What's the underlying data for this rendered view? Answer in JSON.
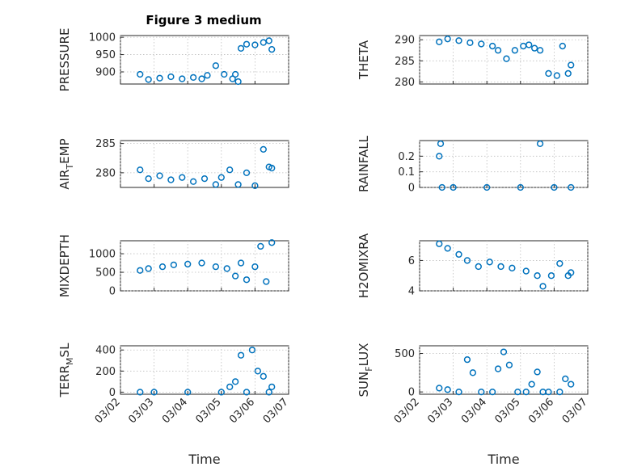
{
  "figure": {
    "title": "Figure 3 medium",
    "marker_color": "#0072bd",
    "axis_color": "#262626",
    "grid": true
  },
  "chart_data": [
    {
      "type": "scatter",
      "title": "Figure 3 medium",
      "ylabel": "PRESSURE",
      "ylabel_base": "PRESSURE",
      "ylabel_sub": "",
      "ylim": [
        865,
        1005
      ],
      "yticks": [
        900,
        950,
        1000
      ],
      "xticks": [],
      "xlabel": "",
      "x": [
        "03/02 14:00",
        "03/02 20:00",
        "03/03 04:00",
        "03/03 12:00",
        "03/03 20:00",
        "03/04 04:00",
        "03/04 10:00",
        "03/04 14:00",
        "03/04 20:00",
        "03/05 02:00",
        "03/05 08:00",
        "03/05 10:00",
        "03/05 12:00",
        "03/05 14:00",
        "03/05 18:00",
        "03/06 00:00",
        "03/06 06:00",
        "03/06 10:00",
        "03/06 12:00"
      ],
      "y": [
        893,
        878,
        882,
        886,
        880,
        884,
        880,
        890,
        918,
        893,
        880,
        893,
        872,
        968,
        980,
        978,
        985,
        990,
        965
      ],
      "series": [
        {
          "name": "",
          "x": [],
          "y": []
        }
      ]
    },
    {
      "type": "scatter",
      "title": "",
      "ylabel": "THETA",
      "ylabel_base": "THETA",
      "ylabel_sub": "",
      "ylim": [
        279.5,
        291
      ],
      "yticks": [
        280,
        285,
        290
      ],
      "xticks": [],
      "xlabel": "",
      "x": [
        "03/02 14:00",
        "03/02 20:00",
        "03/03 04:00",
        "03/03 12:00",
        "03/03 20:00",
        "03/04 04:00",
        "03/04 08:00",
        "03/04 14:00",
        "03/04 20:00",
        "03/05 02:00",
        "03/05 06:00",
        "03/05 10:00",
        "03/05 14:00",
        "03/05 20:00",
        "03/06 02:00",
        "03/06 06:00",
        "03/06 10:00",
        "03/06 12:00"
      ],
      "y": [
        289.5,
        290.2,
        289.8,
        289.3,
        289.0,
        288.5,
        287.5,
        285.5,
        287.5,
        288.5,
        288.8,
        288.0,
        287.5,
        282.0,
        281.5,
        288.5,
        282.0,
        284.0
      ],
      "series": [
        {
          "name": "",
          "x": [],
          "y": []
        }
      ]
    },
    {
      "type": "scatter",
      "title": "",
      "ylabel": "AIR_TEMP",
      "ylabel_base": "AIR",
      "ylabel_sub": "T",
      "ylabel_rest": "EMP",
      "ylim": [
        277.5,
        285.5
      ],
      "yticks": [
        280,
        285
      ],
      "xticks": [],
      "xlabel": "",
      "x": [
        "03/02 14:00",
        "03/02 20:00",
        "03/03 04:00",
        "03/03 12:00",
        "03/03 20:00",
        "03/04 04:00",
        "03/04 12:00",
        "03/04 20:00",
        "03/05 00:00",
        "03/05 06:00",
        "03/05 12:00",
        "03/05 18:00",
        "03/06 00:00",
        "03/06 06:00",
        "03/06 10:00",
        "03/06 12:00"
      ],
      "y": [
        280.5,
        279.0,
        279.5,
        278.8,
        279.2,
        278.5,
        279.0,
        278.0,
        279.2,
        280.5,
        278.0,
        280.0,
        277.8,
        284.0,
        281.0,
        280.8
      ],
      "series": [
        {
          "name": "",
          "x": [],
          "y": []
        }
      ]
    },
    {
      "type": "scatter",
      "title": "",
      "ylabel": "RAINFALL",
      "ylabel_base": "RAINFALL",
      "ylabel_sub": "",
      "ylim": [
        0,
        0.3
      ],
      "yticks": [
        0,
        0.1,
        0.2
      ],
      "xticks": [],
      "xlabel": "",
      "x": [
        "03/02 14:00",
        "03/02 15:00",
        "03/02 16:00",
        "03/03 00:00",
        "03/04 00:00",
        "03/05 00:00",
        "03/05 14:00",
        "03/06 00:00",
        "03/06 12:00"
      ],
      "y": [
        0.2,
        0.28,
        0,
        0,
        0,
        0,
        0.28,
        0,
        0
      ],
      "series": [
        {
          "name": "",
          "x": [],
          "y": []
        }
      ]
    },
    {
      "type": "scatter",
      "title": "",
      "ylabel": "MIXDEPTH",
      "ylabel_base": "MIXDEPTH",
      "ylabel_sub": "",
      "ylim": [
        0,
        1350
      ],
      "yticks": [
        0,
        500,
        1000
      ],
      "xticks": [],
      "xlabel": "",
      "x": [
        "03/02 14:00",
        "03/02 20:00",
        "03/03 06:00",
        "03/03 14:00",
        "03/04 00:00",
        "03/04 10:00",
        "03/04 20:00",
        "03/05 04:00",
        "03/05 10:00",
        "03/05 14:00",
        "03/05 18:00",
        "03/06 00:00",
        "03/06 04:00",
        "03/06 08:00",
        "03/06 12:00"
      ],
      "y": [
        550,
        600,
        650,
        700,
        720,
        750,
        650,
        600,
        400,
        750,
        300,
        650,
        1200,
        250,
        1300
      ],
      "series": [
        {
          "name": "",
          "x": [],
          "y": []
        }
      ]
    },
    {
      "type": "scatter",
      "title": "",
      "ylabel": "H2OMIXRA",
      "ylabel_base": "H2OMIXRA",
      "ylabel_sub": "",
      "ylim": [
        4,
        7.3
      ],
      "yticks": [
        4,
        6
      ],
      "xticks": [],
      "xlabel": "",
      "x": [
        "03/02 14:00",
        "03/02 20:00",
        "03/03 04:00",
        "03/03 10:00",
        "03/03 18:00",
        "03/04 02:00",
        "03/04 10:00",
        "03/04 18:00",
        "03/05 04:00",
        "03/05 12:00",
        "03/05 16:00",
        "03/05 22:00",
        "03/06 04:00",
        "03/06 10:00",
        "03/06 12:00"
      ],
      "y": [
        7.1,
        6.8,
        6.4,
        6.0,
        5.6,
        5.9,
        5.6,
        5.5,
        5.3,
        5.0,
        4.3,
        5.0,
        5.8,
        5.0,
        5.2
      ],
      "series": [
        {
          "name": "",
          "x": [],
          "y": []
        }
      ]
    },
    {
      "type": "scatter",
      "title": "",
      "ylabel": "TERR_MSL",
      "ylabel_base": "TERR",
      "ylabel_sub": "M",
      "ylabel_rest": "SL",
      "ylim": [
        -20,
        440
      ],
      "yticks": [
        0,
        200,
        400
      ],
      "xticks": [
        "03/02",
        "03/03",
        "03/04",
        "03/05",
        "03/06",
        "03/07"
      ],
      "xlabel": "Time",
      "x": [
        "03/02 14:00",
        "03/03 00:00",
        "03/04 00:00",
        "03/05 00:00",
        "03/05 06:00",
        "03/05 10:00",
        "03/05 14:00",
        "03/05 18:00",
        "03/05 22:00",
        "03/06 02:00",
        "03/06 06:00",
        "03/06 10:00",
        "03/06 12:00"
      ],
      "y": [
        0,
        0,
        0,
        0,
        50,
        100,
        350,
        0,
        400,
        200,
        150,
        0,
        50
      ],
      "series": [
        {
          "name": "",
          "x": [],
          "y": []
        }
      ]
    },
    {
      "type": "scatter",
      "title": "",
      "ylabel": "SUN_FLUX",
      "ylabel_base": "SUN",
      "ylabel_sub": "F",
      "ylabel_rest": "LUX",
      "ylim": [
        -30,
        600
      ],
      "yticks": [
        0,
        500
      ],
      "xticks": [
        "03/02",
        "03/03",
        "03/04",
        "03/05",
        "03/06",
        "03/07"
      ],
      "xlabel": "Time",
      "x": [
        "03/02 14:00",
        "03/02 20:00",
        "03/03 04:00",
        "03/03 10:00",
        "03/03 14:00",
        "03/03 20:00",
        "03/04 04:00",
        "03/04 08:00",
        "03/04 12:00",
        "03/04 16:00",
        "03/04 22:00",
        "03/05 04:00",
        "03/05 08:00",
        "03/05 12:00",
        "03/05 16:00",
        "03/05 20:00",
        "03/06 04:00",
        "03/06 08:00",
        "03/06 12:00"
      ],
      "y": [
        50,
        30,
        0,
        420,
        250,
        0,
        0,
        300,
        520,
        350,
        0,
        0,
        100,
        260,
        0,
        0,
        0,
        170,
        100
      ],
      "series": [
        {
          "name": "",
          "x": [],
          "y": []
        }
      ]
    }
  ]
}
